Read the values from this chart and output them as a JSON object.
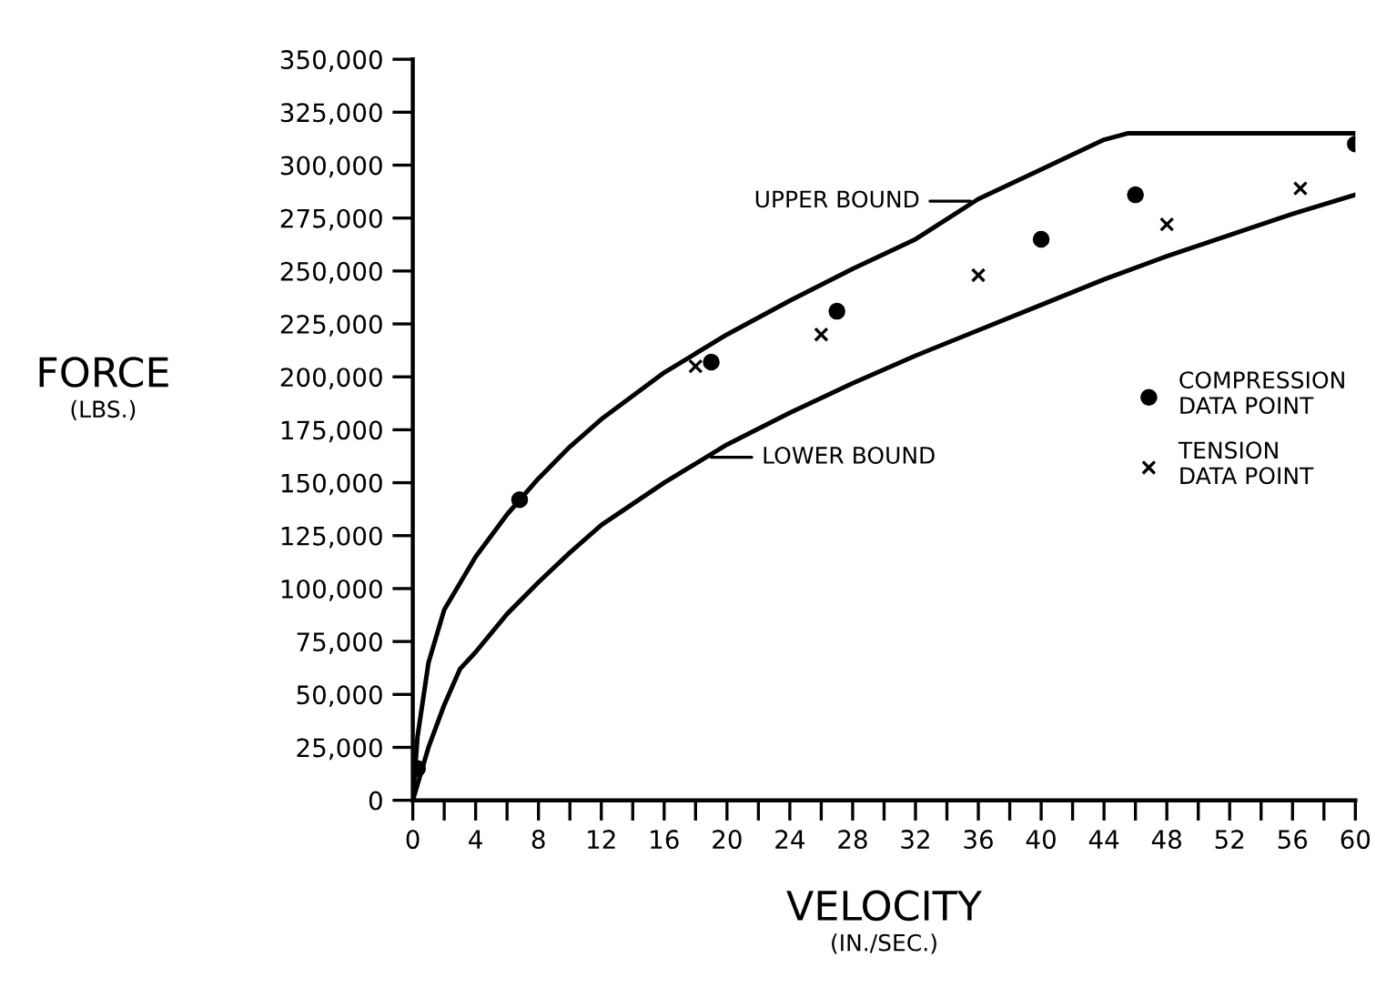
{
  "chart_data": {
    "type": "scatter",
    "xlabel": "VELOCITY\n(IN./SEC.)",
    "ylabel": "FORCE\n(LBS.)",
    "xlim": [
      0,
      60
    ],
    "ylim": [
      0,
      350000
    ],
    "xticks": [
      0,
      {
        "value": 2,
        "label": null
      },
      4,
      {
        "value": 6,
        "label": null
      },
      8,
      {
        "value": 10,
        "label": null
      },
      12,
      {
        "value": 14,
        "label": null
      },
      16,
      {
        "value": 18,
        "label": null
      },
      20,
      {
        "value": 22,
        "label": null
      },
      24,
      {
        "value": 26,
        "label": null
      },
      28,
      {
        "value": 30,
        "label": null
      },
      32,
      {
        "value": 34,
        "label": null
      },
      36,
      {
        "value": 38,
        "label": null
      },
      40,
      {
        "value": 42,
        "label": null
      },
      44,
      {
        "value": 46,
        "label": null
      },
      48,
      {
        "value": 50,
        "label": null
      },
      52,
      {
        "value": 54,
        "label": null
      },
      56,
      {
        "value": 58,
        "label": null
      },
      60
    ],
    "yticks": [
      0,
      {
        "value": 25000,
        "label": "25,000"
      },
      {
        "value": 50000,
        "label": "50,000"
      },
      {
        "value": 75000,
        "label": "75,000"
      },
      {
        "value": 100000,
        "label": "100,000"
      },
      {
        "value": 125000,
        "label": "125,000"
      },
      {
        "value": 150000,
        "label": "150,000"
      },
      {
        "value": 175000,
        "label": "175,000"
      },
      {
        "value": 200000,
        "label": "200,000"
      },
      {
        "value": 225000,
        "label": "225,000"
      },
      {
        "value": 250000,
        "label": "250,000"
      },
      {
        "value": 275000,
        "label": "275,000"
      },
      {
        "value": 300000,
        "label": "300,000"
      },
      {
        "value": 325000,
        "label": "325,000"
      },
      {
        "value": 350000,
        "label": "350,000"
      }
    ],
    "grid": false,
    "legend": "right",
    "series": [
      {
        "type": "line",
        "color": "#000000",
        "marker": "none",
        "x": [
          0,
          0.3,
          1,
          2,
          4,
          6,
          8,
          10,
          12,
          16,
          20,
          24,
          28,
          32,
          36,
          40,
          44,
          45.5,
          60
        ],
        "values": [
          0,
          30000,
          65000,
          90000,
          115000,
          135000,
          152000,
          167000,
          180000,
          202000,
          220000,
          236000,
          251000,
          265000,
          284000,
          298000,
          312000,
          315000,
          315000
        ]
      },
      {
        "type": "line",
        "color": "#000000",
        "marker": "none",
        "x": [
          0,
          1,
          2,
          3,
          4,
          6,
          8,
          10,
          12,
          16,
          20,
          24,
          28,
          32,
          36,
          40,
          44,
          48,
          52,
          56,
          60
        ],
        "values": [
          0,
          25000,
          45000,
          62000,
          70000,
          88000,
          103000,
          117000,
          130000,
          150000,
          168000,
          183000,
          197000,
          210000,
          222000,
          234000,
          246000,
          257000,
          267000,
          277000,
          286000
        ]
      },
      {
        "name": "COMPRESSION\nDATA POINT",
        "color": "#000000",
        "marker": "circle",
        "x": [
          0.3,
          6.8,
          19,
          27,
          40,
          46,
          60
        ],
        "values": [
          15000,
          142000,
          207000,
          231000,
          265000,
          286000,
          310000
        ]
      },
      {
        "name": "TENSION\nDATA POINT",
        "color": "#000000",
        "marker": "cross",
        "x": [
          18,
          26,
          36,
          48,
          56.5
        ],
        "values": [
          205000,
          220000,
          248000,
          272000,
          289000
        ]
      }
    ],
    "annotations": [
      {
        "text": "UPPER BOUND",
        "x": 35.5,
        "y": 283000
      },
      {
        "text": "LOWER BOUND",
        "x": 19,
        "y": 162000
      }
    ]
  }
}
